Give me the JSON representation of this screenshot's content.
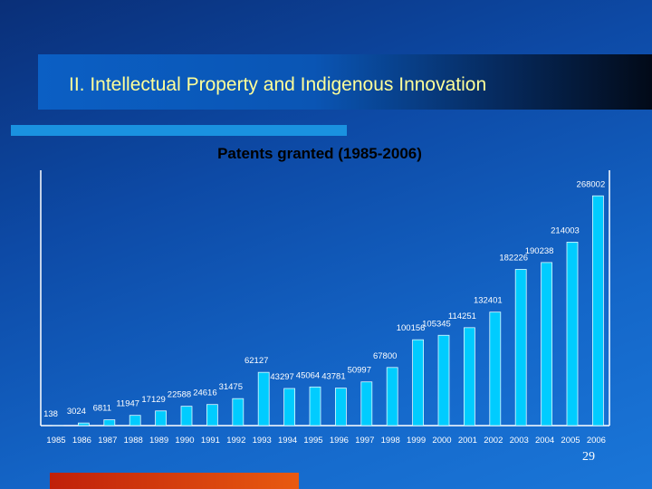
{
  "slide": {
    "title": "II. Intellectual Property and Indigenous Innovation",
    "page_number": "29"
  },
  "colors": {
    "bar": "#00ccff",
    "title_text": "#ffff99",
    "accent_bar": "#1a92e0",
    "bottom_bar": "#d83a0e"
  },
  "chart_data": {
    "type": "bar",
    "title": "Patents granted (1985-2006)",
    "categories": [
      "1985",
      "1986",
      "1987",
      "1988",
      "1989",
      "1990",
      "1991",
      "1992",
      "1993",
      "1994",
      "1995",
      "1996",
      "1997",
      "1998",
      "1999",
      "2000",
      "2001",
      "2002",
      "2003",
      "2004",
      "2005",
      "2006"
    ],
    "values": [
      138,
      3024,
      6811,
      11947,
      17129,
      22588,
      24616,
      31475,
      62127,
      43297,
      45064,
      43781,
      50997,
      67800,
      100156,
      105345,
      114251,
      132401,
      182226,
      190238,
      214003,
      268002
    ],
    "ylim": [
      0,
      280000
    ],
    "grid": false,
    "legend": "none"
  }
}
